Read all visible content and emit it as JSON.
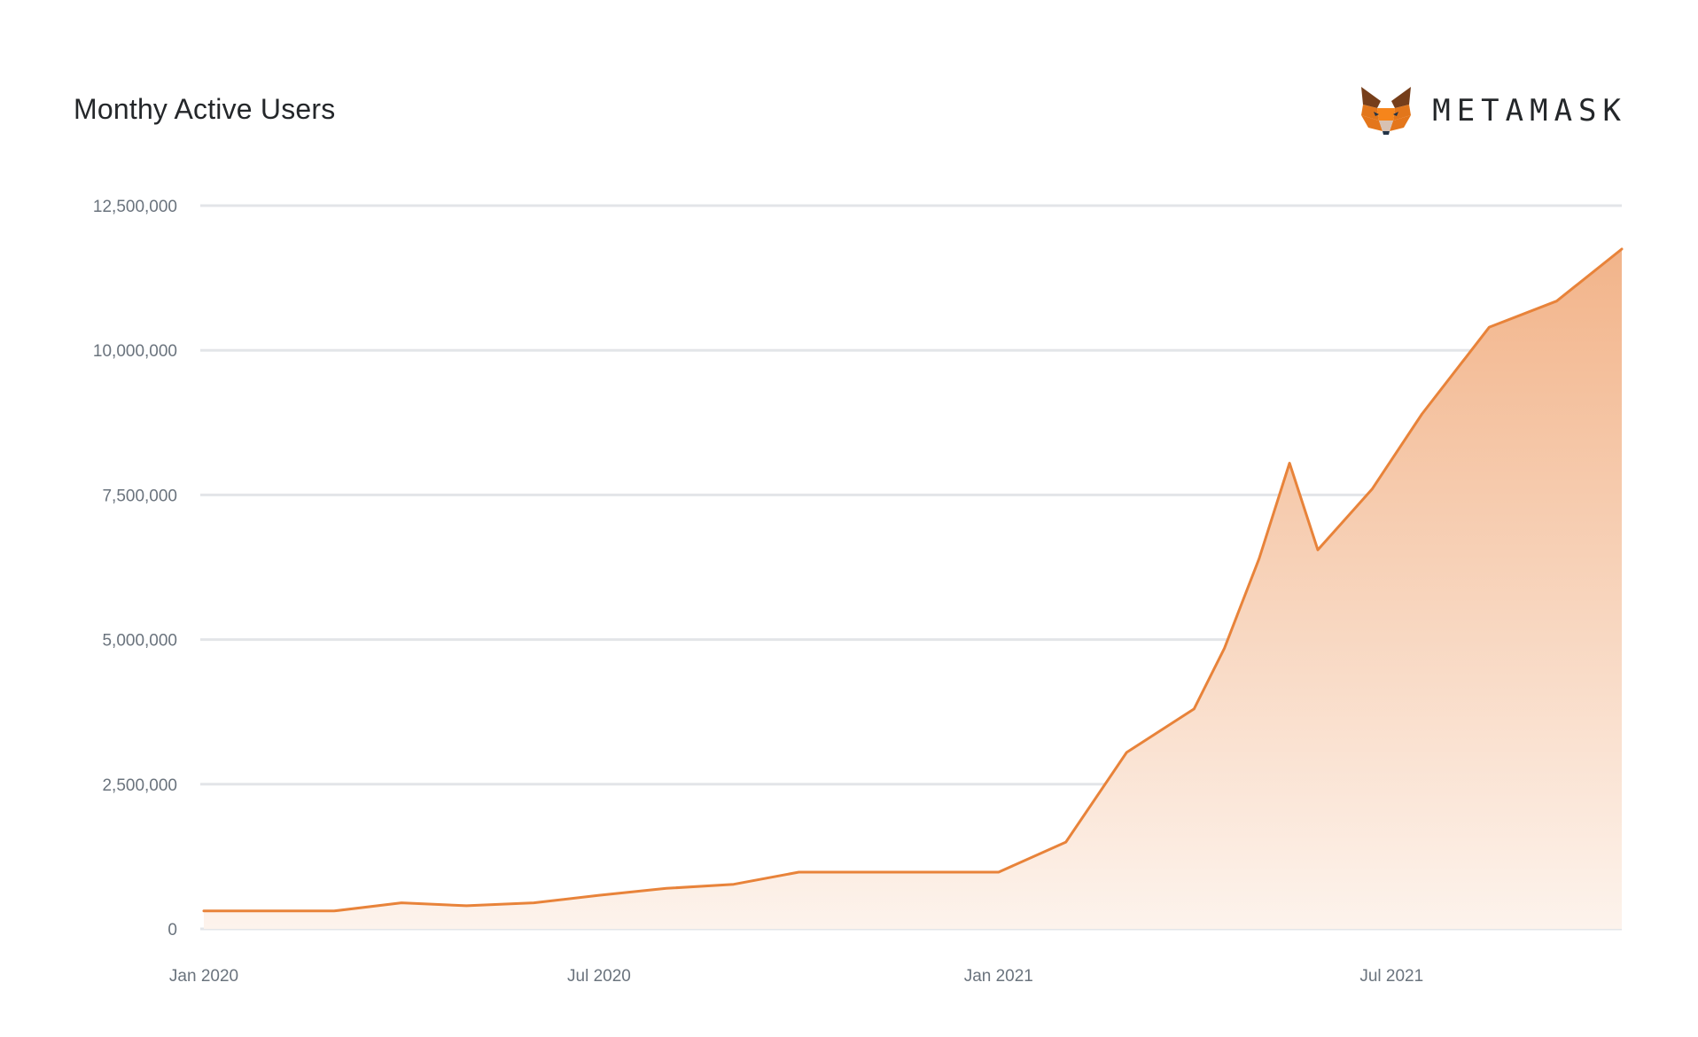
{
  "header": {
    "title": "Monthy Active Users",
    "brand": "METAMASK",
    "brand_icon": "metamask-fox-icon"
  },
  "colors": {
    "line": "#e8833a",
    "fill_top": "#f2b48a",
    "fill_bottom": "#fdf3ec",
    "grid": "#e3e5e8",
    "text": "#24272a",
    "tick": "#6a737d"
  },
  "chart_data": {
    "type": "area",
    "title": "Monthy Active Users",
    "xlabel": "",
    "ylabel": "",
    "ylim": [
      0,
      12500000
    ],
    "yticks": [
      0,
      2500000,
      5000000,
      7500000,
      10000000,
      12500000
    ],
    "ytick_labels": [
      "0",
      "2,500,000",
      "5,000,000",
      "7,500,000",
      "10,000,000",
      "12,500,000"
    ],
    "xlim": [
      "2020-01-01",
      "2021-10-15"
    ],
    "xticks": [
      "2020-01-01",
      "2020-07-01",
      "2021-01-01",
      "2021-07-01"
    ],
    "xtick_labels": [
      "Jan 2020",
      "Jul 2020",
      "Jan 2021",
      "Jul 2021"
    ],
    "grid": true,
    "legend": "none",
    "series": [
      {
        "x": [
          "2020-01-01",
          "2020-02-01",
          "2020-03-01",
          "2020-04-01",
          "2020-05-01",
          "2020-06-01",
          "2020-07-01",
          "2020-08-01",
          "2020-09-01",
          "2020-10-01",
          "2020-11-01",
          "2020-12-01",
          "2021-01-01",
          "2021-02-01",
          "2021-03-01",
          "2021-04-01",
          "2021-04-15",
          "2021-05-01",
          "2021-05-15",
          "2021-05-28",
          "2021-06-22",
          "2021-07-15",
          "2021-08-15",
          "2021-09-15",
          "2021-10-15"
        ],
        "y": [
          310000,
          310000,
          310000,
          450000,
          400000,
          450000,
          580000,
          700000,
          770000,
          980000,
          980000,
          980000,
          980000,
          1500000,
          3050000,
          3800000,
          4850000,
          6400000,
          8050000,
          6550000,
          7600000,
          8900000,
          10400000,
          10850000,
          11750000
        ]
      }
    ]
  }
}
